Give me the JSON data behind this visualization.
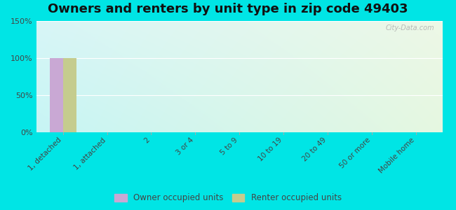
{
  "title": "Owners and renters by unit type in zip code 49403",
  "categories": [
    "1, detached",
    "1, attached",
    "2",
    "3 or 4",
    "5 to 9",
    "10 to 19",
    "20 to 49",
    "50 or more",
    "Mobile home"
  ],
  "owner_values": [
    100,
    0,
    0,
    0,
    0,
    0,
    0,
    0,
    0
  ],
  "renter_values": [
    100,
    0,
    0,
    0,
    0,
    0,
    0,
    0,
    0
  ],
  "owner_color": "#c9a8d4",
  "renter_color": "#c5cc8e",
  "owner_label": "Owner occupied units",
  "renter_label": "Renter occupied units",
  "ylim": [
    0,
    150
  ],
  "yticks": [
    0,
    50,
    100,
    150
  ],
  "ytick_labels": [
    "0%",
    "50%",
    "100%",
    "150%"
  ],
  "plot_bg_top_left": "#b0f0f0",
  "plot_bg_top_right": "#dff5e8",
  "plot_bg_bottom": "#f0faf2",
  "outer_bg": "#00e5e5",
  "title_fontsize": 13,
  "watermark": "City-Data.com"
}
